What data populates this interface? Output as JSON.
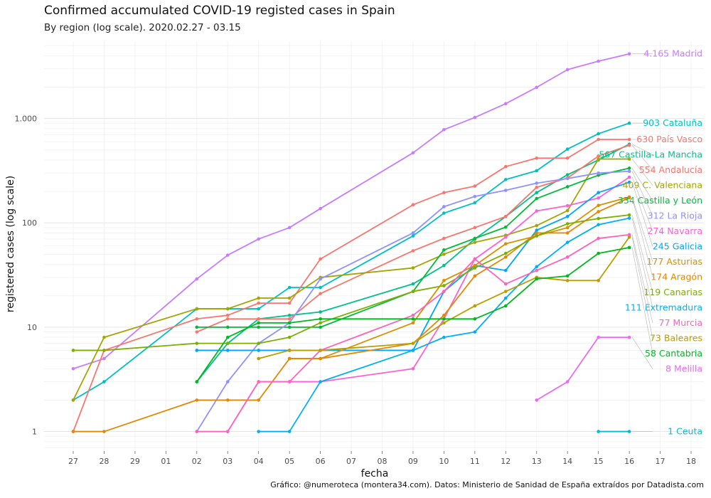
{
  "title": "Confirmed accumulated COVID-19 registed cases in Spain",
  "subtitle": "By region (log scale). 2020.02.27 - 03.15",
  "caption": "Gráfico: @numeroteca (montera34.com). Datos: Ministerio de Sanidad de España extraídos por Datadista.com",
  "chart_data": {
    "type": "line",
    "title": "Confirmed accumulated COVID-19 registed cases in Spain",
    "subtitle": "By region (log scale). 2020.02.27 - 03.15",
    "xlabel": "fecha",
    "ylabel": "registered cases (log scale)",
    "y_scale": "log",
    "ylim": [
      0.65,
      5500
    ],
    "y_ticks": [
      1,
      10,
      100,
      1000
    ],
    "y_tick_labels": [
      "1",
      "10",
      "100",
      "1.000"
    ],
    "x_ticks": [
      "27",
      "28",
      "29",
      "01",
      "02",
      "03",
      "04",
      "05",
      "06",
      "07",
      "08",
      "09",
      "10",
      "11",
      "12",
      "13",
      "14",
      "15",
      "16",
      "17",
      "18"
    ],
    "x": [
      "27",
      "28",
      "29",
      "01",
      "02",
      "03",
      "04",
      "05",
      "06",
      "07",
      "08",
      "09",
      "10",
      "11",
      "12",
      "13",
      "14",
      "15",
      "16"
    ],
    "grid": true,
    "legend": "direct labels at line ends (right)",
    "series": [
      {
        "name": "Madrid",
        "label": "4.165 Madrid",
        "color": "#c77cff",
        "values": [
          4,
          5,
          null,
          null,
          29,
          49,
          70,
          90,
          137,
          null,
          null,
          469,
          782,
          1024,
          1388,
          1990,
          2940,
          3544,
          4165
        ]
      },
      {
        "name": "Cataluña",
        "label": "903 Cataluña",
        "color": "#00bfc4",
        "values": [
          2,
          3,
          null,
          null,
          15,
          15,
          15,
          24,
          24,
          null,
          null,
          75,
          124,
          156,
          260,
          316,
          509,
          715,
          903
        ]
      },
      {
        "name": "País Vasco",
        "label": "630 País Vasco",
        "color": "#f8766d",
        "values": [
          1,
          6,
          null,
          null,
          12,
          13,
          17,
          17,
          45,
          null,
          null,
          149,
          195,
          225,
          346,
          417,
          417,
          630,
          630
        ]
      },
      {
        "name": "Castilla-La Mancha",
        "label": "567 Castilla-La Mancha",
        "color": "#00c08b",
        "values": [
          null,
          null,
          null,
          null,
          3,
          7,
          12,
          13,
          14,
          null,
          null,
          26,
          39,
          70,
          115,
          195,
          289,
          401,
          567
        ]
      },
      {
        "name": "Andalucía",
        "label": "554 Andalucía",
        "color": "#f8766d",
        "values": [
          null,
          null,
          null,
          null,
          9,
          12,
          12,
          12,
          21,
          null,
          null,
          54,
          71,
          90,
          115,
          219,
          269,
          437,
          554
        ]
      },
      {
        "name": "C. Valenciana",
        "label": "409 C. Valenciana",
        "color": "#a3a500",
        "values": [
          2,
          8,
          null,
          null,
          15,
          15,
          19,
          19,
          30,
          null,
          null,
          37,
          50,
          65,
          76,
          94,
          131,
          409,
          409
        ]
      },
      {
        "name": "Castilla y León",
        "label": "334 Castilla y León",
        "color": "#00ba38",
        "values": [
          null,
          null,
          null,
          null,
          10,
          10,
          10,
          10,
          10,
          null,
          null,
          22,
          55,
          71,
          91,
          171,
          222,
          286,
          334
        ]
      },
      {
        "name": "La Rioja",
        "label": "312 La Rioja",
        "color": "#8f91ff",
        "values": [
          null,
          null,
          null,
          null,
          1,
          3,
          7,
          11,
          29,
          null,
          null,
          80,
          143,
          179,
          205,
          240,
          266,
          300,
          312
        ]
      },
      {
        "name": "Navarra",
        "label": "274 Navarra",
        "color": "#fb61d7",
        "values": [
          null,
          null,
          null,
          null,
          null,
          1,
          3,
          3,
          3,
          null,
          null,
          4,
          12,
          45,
          73,
          130,
          146,
          173,
          274
        ]
      },
      {
        "name": "Galicia",
        "label": "245 Galicia",
        "color": "#00a5ff",
        "values": [
          null,
          null,
          null,
          null,
          6,
          6,
          6,
          6,
          6,
          null,
          null,
          6,
          22,
          39,
          35,
          85,
          115,
          195,
          245
        ]
      },
      {
        "name": "Asturias",
        "label": "177 Asturias",
        "color": "#d89000",
        "values": [
          null,
          null,
          null,
          null,
          null,
          null,
          null,
          5,
          5,
          null,
          null,
          11,
          28,
          39,
          63,
          75,
          90,
          147,
          177
        ]
      },
      {
        "name": "Aragón",
        "label": "174 Aragón",
        "color": "#e58700",
        "values": [
          1,
          1,
          null,
          null,
          2,
          2,
          2,
          5,
          5,
          null,
          null,
          7,
          13,
          31,
          47,
          80,
          80,
          128,
          174
        ]
      },
      {
        "name": "Canarias",
        "label": "119 Canarias",
        "color": "#7cae00",
        "values": [
          6,
          6,
          null,
          null,
          7,
          7,
          7,
          8,
          11,
          null,
          null,
          22,
          25,
          37,
          51,
          75,
          98,
          110,
          119
        ]
      },
      {
        "name": "Extremadura",
        "label": "111 Extremadura",
        "color": "#00b0f6",
        "values": [
          null,
          null,
          null,
          null,
          null,
          null,
          1,
          1,
          3,
          null,
          null,
          6,
          8,
          9,
          19,
          38,
          65,
          96,
          111
        ]
      },
      {
        "name": "Murcia",
        "label": "77 Murcia",
        "color": "#ff62bc",
        "values": [
          null,
          null,
          null,
          null,
          1,
          1,
          3,
          3,
          6,
          null,
          null,
          13,
          22,
          45,
          26,
          35,
          47,
          71,
          77
        ]
      },
      {
        "name": "Baleares",
        "label": "73 Baleares",
        "color": "#bb9d00",
        "values": [
          null,
          null,
          null,
          null,
          null,
          null,
          5,
          6,
          6,
          null,
          null,
          7,
          11,
          16,
          22,
          30,
          28,
          28,
          73
        ]
      },
      {
        "name": "Cantabria",
        "label": "58 Cantabria",
        "color": "#00b81f",
        "values": [
          null,
          null,
          null,
          null,
          3,
          8,
          11,
          11,
          12,
          null,
          null,
          12,
          12,
          12,
          16,
          29,
          31,
          51,
          58
        ]
      },
      {
        "name": "Melilla",
        "label": "8 Melilla",
        "color": "#e76bf3",
        "values": [
          null,
          null,
          null,
          null,
          null,
          null,
          null,
          null,
          null,
          null,
          null,
          null,
          null,
          null,
          null,
          2,
          3,
          8,
          8
        ]
      },
      {
        "name": "Ceuta",
        "label": "1 Ceuta",
        "color": "#00bcd8",
        "values": [
          null,
          null,
          null,
          null,
          null,
          null,
          null,
          null,
          null,
          null,
          null,
          null,
          null,
          null,
          null,
          null,
          null,
          1,
          1
        ]
      }
    ]
  }
}
